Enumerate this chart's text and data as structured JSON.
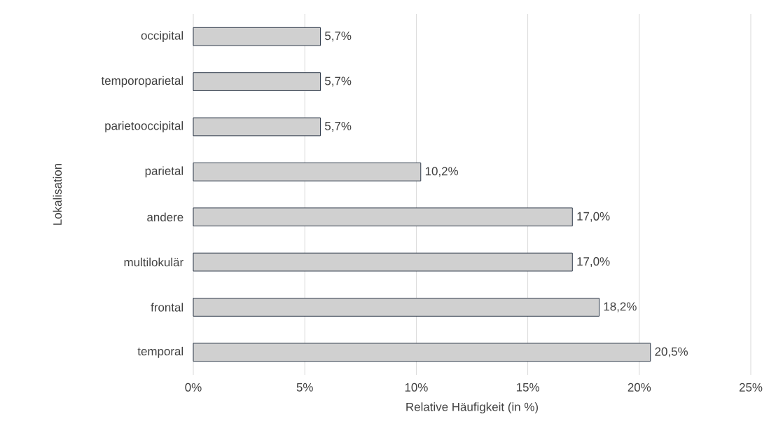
{
  "chart_data": {
    "type": "bar",
    "orientation": "horizontal",
    "xlabel": "Relative Häufigkeit (in %)",
    "ylabel": "Lokalisation",
    "categories": [
      "occipital",
      "temporoparietal",
      "parietooccipital",
      "parietal",
      "andere",
      "multilokulär",
      "frontal",
      "temporal"
    ],
    "values": [
      5.7,
      5.7,
      5.7,
      10.2,
      17.0,
      17.0,
      18.2,
      20.5
    ],
    "value_labels": [
      "5,7%",
      "5,7%",
      "5,7%",
      "10,2%",
      "17,0%",
      "17,0%",
      "18,2%",
      "20,5%"
    ],
    "color": "#d0d0d0",
    "xlim": [
      0,
      25
    ],
    "xticks": [
      {
        "value": 0,
        "label": "0%"
      },
      {
        "value": 5,
        "label": "5%"
      },
      {
        "value": 10,
        "label": "10%"
      },
      {
        "value": 15,
        "label": "15%"
      },
      {
        "value": 20,
        "label": "20%"
      },
      {
        "value": 25,
        "label": "25%"
      }
    ],
    "grid": "x"
  }
}
